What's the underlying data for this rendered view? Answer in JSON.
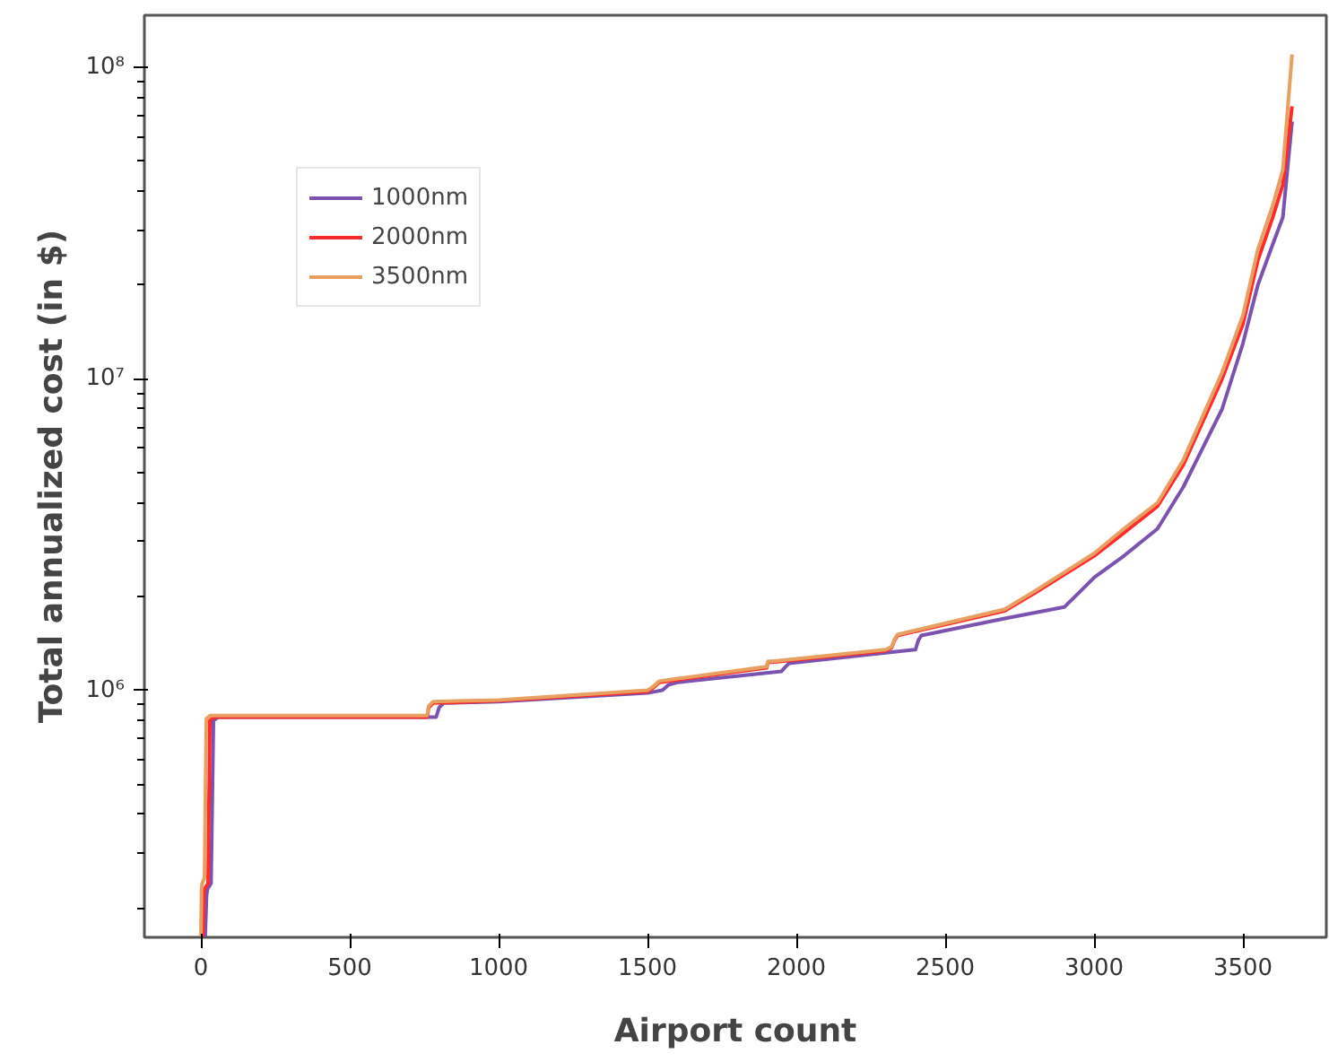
{
  "chart_data": {
    "type": "line",
    "xlabel": "Airport count",
    "ylabel": "Total annualized cost (in $)",
    "log": "y",
    "xlim": [
      -190,
      3780
    ],
    "ylim": [
      161000,
      147000000
    ],
    "xticks": [
      0,
      500,
      1000,
      1500,
      2000,
      2500,
      3000,
      3500
    ],
    "yticks": [
      {
        "value": 1000000,
        "label": "10⁶"
      },
      {
        "value": 10000000,
        "label": "10⁷"
      },
      {
        "value": 100000000,
        "label": "10⁸"
      }
    ],
    "grid": false,
    "legend": "top left",
    "marker": "none",
    "line_style": "solid",
    "series": [
      {
        "name": "1000nm",
        "color": "#7b52b0",
        "x": [
          14,
          19,
          22,
          34,
          42,
          58,
          790,
          800,
          815,
          1000,
          1500,
          1550,
          1570,
          1600,
          1950,
          1960,
          1975,
          2300,
          2400,
          2410,
          2420,
          2700,
          2900,
          3000,
          3100,
          3213,
          3300,
          3430,
          3500,
          3550,
          3600,
          3634,
          3665
        ],
        "values": [
          161000,
          220000,
          230000,
          240000,
          800000,
          820000,
          820000,
          880000,
          910000,
          920000,
          980000,
          1000000,
          1040000,
          1060000,
          1150000,
          1180000,
          1220000,
          1320000,
          1350000,
          1450000,
          1500000,
          1700000,
          1850000,
          2300000,
          2700000,
          3300000,
          4500000,
          8000000,
          13000000,
          20000000,
          27000000,
          33000000,
          67000000
        ]
      },
      {
        "name": "2000nm",
        "color": "#ff2a2a",
        "x": [
          6,
          10,
          12,
          24,
          30,
          45,
          760,
          765,
          780,
          1000,
          1500,
          1520,
          1540,
          1600,
          1900,
          1905,
          1920,
          2300,
          2320,
          2330,
          2340,
          2700,
          2800,
          3000,
          3100,
          3213,
          3300,
          3430,
          3500,
          3550,
          3600,
          3634,
          3665
        ],
        "values": [
          161000,
          220000,
          230000,
          240000,
          800000,
          820000,
          820000,
          880000,
          910000,
          925000,
          990000,
          1020000,
          1060000,
          1080000,
          1180000,
          1230000,
          1230000,
          1340000,
          1370000,
          1450000,
          1500000,
          1800000,
          2050000,
          2700000,
          3200000,
          3900000,
          5300000,
          10000000,
          15000000,
          24000000,
          33000000,
          42000000,
          75000000
        ]
      },
      {
        "name": "3500nm",
        "color": "#e8a060",
        "x": [
          0,
          2,
          4,
          12,
          18,
          32,
          760,
          765,
          780,
          1000,
          1500,
          1520,
          1540,
          1600,
          1900,
          1905,
          1920,
          2300,
          2320,
          2330,
          2340,
          2700,
          2800,
          3000,
          3100,
          3213,
          3300,
          3430,
          3500,
          3550,
          3600,
          3634,
          3665
        ],
        "values": [
          161000,
          230000,
          240000,
          250000,
          810000,
          830000,
          830000,
          890000,
          920000,
          930000,
          1000000,
          1030000,
          1070000,
          1090000,
          1190000,
          1240000,
          1240000,
          1350000,
          1380000,
          1460000,
          1510000,
          1820000,
          2080000,
          2750000,
          3300000,
          4000000,
          5500000,
          10500000,
          16000000,
          26000000,
          36000000,
          47000000,
          110000000
        ]
      }
    ]
  }
}
